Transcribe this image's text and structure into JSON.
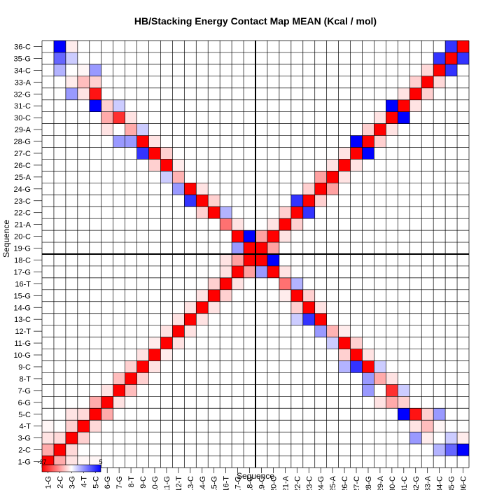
{
  "chart_data": {
    "type": "heatmap",
    "title": "HB/Stacking Energy Contact Map MEAN (Kcal / mol)",
    "xlabel": "Sequence",
    "ylabel": "Sequence",
    "labels": [
      "1-G",
      "2-C",
      "3-G",
      "4-T",
      "5-C",
      "6-G",
      "7-G",
      "8-T",
      "9-C",
      "10-G",
      "11-G",
      "12-T",
      "13-C",
      "14-G",
      "15-G",
      "16-T",
      "17-G",
      "18-C",
      "19-G",
      "20-C",
      "21-A",
      "22-C",
      "23-C",
      "24-G",
      "25-A",
      "26-C",
      "27-C",
      "28-G",
      "29-A",
      "30-C",
      "31-C",
      "32-G",
      "33-A",
      "34-C",
      "35-G",
      "36-C"
    ],
    "divider_after_index": 18,
    "color_scale": {
      "min_label": "-27",
      "max_label": "5",
      "min": -27,
      "max": 5,
      "colors": [
        "#ff0000",
        "#ffffff",
        "#0000ff"
      ]
    },
    "cells": [
      [
        1,
        1,
        -27
      ],
      [
        1,
        2,
        -9
      ],
      [
        1,
        3,
        -3
      ],
      [
        1,
        4,
        -1
      ],
      [
        1,
        5,
        -1
      ],
      [
        2,
        1,
        -9
      ],
      [
        2,
        2,
        -27
      ],
      [
        2,
        3,
        -4
      ],
      [
        2,
        36,
        5
      ],
      [
        2,
        35,
        3
      ],
      [
        2,
        34,
        1.5
      ],
      [
        3,
        1,
        -3
      ],
      [
        3,
        2,
        -4
      ],
      [
        3,
        3,
        -27
      ],
      [
        3,
        4,
        -5
      ],
      [
        3,
        36,
        -2
      ],
      [
        3,
        35,
        1
      ],
      [
        3,
        33,
        -2
      ],
      [
        3,
        32,
        2
      ],
      [
        4,
        1,
        -1
      ],
      [
        4,
        3,
        -5
      ],
      [
        4,
        4,
        -27
      ],
      [
        4,
        5,
        -4
      ],
      [
        4,
        34,
        -1
      ],
      [
        4,
        33,
        -7
      ],
      [
        4,
        32,
        -3
      ],
      [
        5,
        3,
        -3
      ],
      [
        5,
        4,
        -4
      ],
      [
        5,
        5,
        -27
      ],
      [
        5,
        6,
        -9
      ],
      [
        5,
        31,
        5
      ],
      [
        5,
        32,
        -25
      ],
      [
        5,
        33,
        -5
      ],
      [
        5,
        34,
        2
      ],
      [
        6,
        5,
        -9
      ],
      [
        6,
        6,
        -27
      ],
      [
        6,
        7,
        -3
      ],
      [
        6,
        29,
        -3
      ],
      [
        6,
        30,
        -9
      ],
      [
        6,
        31,
        -5
      ],
      [
        7,
        6,
        -3
      ],
      [
        7,
        7,
        -27
      ],
      [
        7,
        8,
        -7
      ],
      [
        7,
        28,
        2
      ],
      [
        7,
        30,
        -22
      ],
      [
        7,
        31,
        1
      ],
      [
        8,
        7,
        -7
      ],
      [
        8,
        8,
        -27
      ],
      [
        8,
        9,
        -5
      ],
      [
        8,
        28,
        2
      ],
      [
        8,
        29,
        -9
      ],
      [
        8,
        30,
        -3
      ],
      [
        9,
        8,
        -5
      ],
      [
        9,
        9,
        -27
      ],
      [
        9,
        10,
        -3
      ],
      [
        9,
        27,
        4
      ],
      [
        9,
        28,
        -27
      ],
      [
        9,
        29,
        1
      ],
      [
        9,
        26,
        1.5
      ],
      [
        10,
        9,
        -3
      ],
      [
        10,
        10,
        -27
      ],
      [
        10,
        11,
        -2
      ],
      [
        10,
        26,
        -5
      ],
      [
        10,
        27,
        -27
      ],
      [
        10,
        28,
        -3
      ],
      [
        11,
        10,
        -2
      ],
      [
        11,
        11,
        -27
      ],
      [
        11,
        12,
        -3
      ],
      [
        11,
        25,
        1
      ],
      [
        11,
        26,
        -27
      ],
      [
        11,
        27,
        -5
      ],
      [
        12,
        11,
        -3
      ],
      [
        12,
        12,
        -27
      ],
      [
        12,
        13,
        -3
      ],
      [
        12,
        24,
        2
      ],
      [
        12,
        25,
        -8
      ],
      [
        12,
        26,
        -2
      ],
      [
        13,
        12,
        -3
      ],
      [
        13,
        13,
        -27
      ],
      [
        13,
        14,
        -3
      ],
      [
        13,
        23,
        4
      ],
      [
        13,
        24,
        -27
      ],
      [
        13,
        22,
        1
      ],
      [
        14,
        13,
        -3
      ],
      [
        14,
        14,
        -27
      ],
      [
        14,
        15,
        -3
      ],
      [
        14,
        22,
        -5
      ],
      [
        14,
        23,
        -27
      ],
      [
        14,
        24,
        -3
      ],
      [
        15,
        14,
        -3
      ],
      [
        15,
        15,
        -27
      ],
      [
        15,
        16,
        -5
      ],
      [
        15,
        21,
        -2
      ],
      [
        15,
        22,
        -27
      ],
      [
        15,
        23,
        -5
      ],
      [
        16,
        15,
        -5
      ],
      [
        16,
        16,
        -27
      ],
      [
        16,
        17,
        -3
      ],
      [
        16,
        21,
        -15
      ],
      [
        16,
        22,
        1.5
      ],
      [
        17,
        16,
        -3
      ],
      [
        17,
        17,
        -27
      ],
      [
        17,
        18,
        -10
      ],
      [
        17,
        19,
        2
      ],
      [
        17,
        20,
        -27
      ],
      [
        17,
        21,
        -3
      ],
      [
        18,
        17,
        -10
      ],
      [
        18,
        18,
        -27
      ],
      [
        18,
        19,
        -27
      ],
      [
        18,
        20,
        5
      ],
      [
        18,
        16,
        -3
      ],
      [
        19,
        17,
        2
      ],
      [
        19,
        18,
        -27
      ],
      [
        19,
        19,
        -27
      ],
      [
        19,
        20,
        -10
      ],
      [
        20,
        17,
        -27
      ],
      [
        20,
        18,
        5
      ],
      [
        20,
        19,
        -10
      ],
      [
        20,
        20,
        -27
      ],
      [
        20,
        21,
        -3
      ],
      [
        21,
        16,
        -15
      ],
      [
        21,
        17,
        -3
      ],
      [
        21,
        20,
        -3
      ],
      [
        21,
        21,
        -27
      ],
      [
        21,
        22,
        -5
      ],
      [
        22,
        14,
        -5
      ],
      [
        22,
        15,
        -27
      ],
      [
        22,
        16,
        1.5
      ],
      [
        22,
        21,
        -5
      ],
      [
        22,
        22,
        -27
      ],
      [
        22,
        23,
        4
      ],
      [
        23,
        13,
        4
      ],
      [
        23,
        14,
        -27
      ],
      [
        23,
        15,
        -5
      ],
      [
        23,
        22,
        4
      ],
      [
        23,
        23,
        -27
      ],
      [
        23,
        24,
        -5
      ],
      [
        24,
        12,
        2
      ],
      [
        24,
        13,
        -27
      ],
      [
        24,
        14,
        -3
      ],
      [
        24,
        23,
        -5
      ],
      [
        24,
        24,
        -27
      ],
      [
        24,
        25,
        -10
      ],
      [
        25,
        11,
        1
      ],
      [
        25,
        12,
        -8
      ],
      [
        25,
        24,
        -10
      ],
      [
        25,
        25,
        -27
      ],
      [
        25,
        26,
        -3
      ],
      [
        26,
        10,
        -5
      ],
      [
        26,
        11,
        -27
      ],
      [
        26,
        12,
        -2
      ],
      [
        26,
        25,
        -3
      ],
      [
        26,
        26,
        -27
      ],
      [
        26,
        27,
        -3
      ],
      [
        27,
        9,
        4
      ],
      [
        27,
        10,
        -27
      ],
      [
        27,
        11,
        -5
      ],
      [
        27,
        26,
        -3
      ],
      [
        27,
        27,
        -27
      ],
      [
        27,
        28,
        5
      ],
      [
        28,
        7,
        2
      ],
      [
        28,
        8,
        2
      ],
      [
        28,
        9,
        -27
      ],
      [
        28,
        10,
        -3
      ],
      [
        28,
        27,
        5
      ],
      [
        28,
        28,
        -27
      ],
      [
        28,
        29,
        -5
      ],
      [
        29,
        6,
        -3
      ],
      [
        29,
        8,
        -9
      ],
      [
        29,
        9,
        1
      ],
      [
        29,
        28,
        -5
      ],
      [
        29,
        29,
        -27
      ],
      [
        29,
        30,
        -3
      ],
      [
        30,
        6,
        -9
      ],
      [
        30,
        7,
        -22
      ],
      [
        30,
        8,
        -3
      ],
      [
        30,
        29,
        -3
      ],
      [
        30,
        30,
        -27
      ],
      [
        30,
        31,
        5
      ],
      [
        31,
        5,
        5
      ],
      [
        31,
        6,
        -5
      ],
      [
        31,
        7,
        1
      ],
      [
        31,
        30,
        5
      ],
      [
        31,
        31,
        -27
      ],
      [
        31,
        32,
        -3
      ],
      [
        32,
        3,
        2
      ],
      [
        32,
        4,
        -3
      ],
      [
        32,
        5,
        -25
      ],
      [
        32,
        31,
        -3
      ],
      [
        32,
        32,
        -27
      ],
      [
        32,
        33,
        -5
      ],
      [
        33,
        3,
        -2
      ],
      [
        33,
        4,
        -7
      ],
      [
        33,
        5,
        -5
      ],
      [
        33,
        32,
        -5
      ],
      [
        33,
        33,
        -27
      ],
      [
        33,
        34,
        -4
      ],
      [
        34,
        2,
        1.5
      ],
      [
        34,
        4,
        -1
      ],
      [
        34,
        5,
        2
      ],
      [
        34,
        33,
        -4
      ],
      [
        34,
        34,
        -27
      ],
      [
        34,
        35,
        4
      ],
      [
        35,
        2,
        3
      ],
      [
        35,
        3,
        1
      ],
      [
        35,
        34,
        4
      ],
      [
        35,
        35,
        -27
      ],
      [
        35,
        36,
        4
      ],
      [
        36,
        2,
        5
      ],
      [
        36,
        3,
        -2
      ],
      [
        36,
        35,
        4
      ],
      [
        36,
        36,
        -27
      ]
    ]
  }
}
